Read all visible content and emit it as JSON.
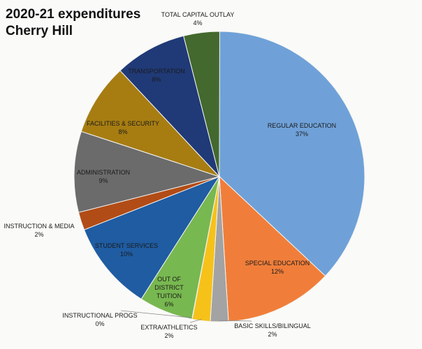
{
  "title_lines": [
    "2020-21 expenditures",
    "Cherry Hill"
  ],
  "chart_data": {
    "type": "pie",
    "title": "2020-21 expenditures Cherry Hill",
    "slices": [
      {
        "label": "REGULAR EDUCATION",
        "value": 37,
        "display": "37%",
        "color": "#6fa1d8"
      },
      {
        "label": "SPECIAL EDUCATION",
        "value": 12,
        "display": "12%",
        "color": "#f07e3a"
      },
      {
        "label": "BASIC SKILLS/BILINGUAL",
        "value": 2,
        "display": "2%",
        "color": "#a3a3a3"
      },
      {
        "label": "EXTRA/ATHLETICS",
        "value": 2,
        "display": "2%",
        "color": "#f6c21a"
      },
      {
        "label": "INSTRUCTIONAL PROGS",
        "value": 0,
        "display": "0%",
        "color": "#4a82c3"
      },
      {
        "label": "OUT OF DISTRICT TUITION",
        "value": 6,
        "display": "6%",
        "color": "#78b850"
      },
      {
        "label": "STUDENT SERVICES",
        "value": 10,
        "display": "10%",
        "color": "#1f5ca2"
      },
      {
        "label": "INSTRUCTION & MEDIA",
        "value": 2,
        "display": "2%",
        "color": "#b24c16"
      },
      {
        "label": "ADMINISTRATION",
        "value": 9,
        "display": "9%",
        "color": "#6b6b6b"
      },
      {
        "label": "FACILITIES & SECURITY",
        "value": 8,
        "display": "8%",
        "color": "#a77d12"
      },
      {
        "label": "TRANSPORTATION",
        "value": 8,
        "display": "8%",
        "color": "#203a77"
      },
      {
        "label": "TOTAL CAPITAL OUTLAY",
        "value": 4,
        "display": "4%",
        "color": "#43692e"
      }
    ],
    "legend": "none",
    "data_labels": "category name and percent"
  }
}
